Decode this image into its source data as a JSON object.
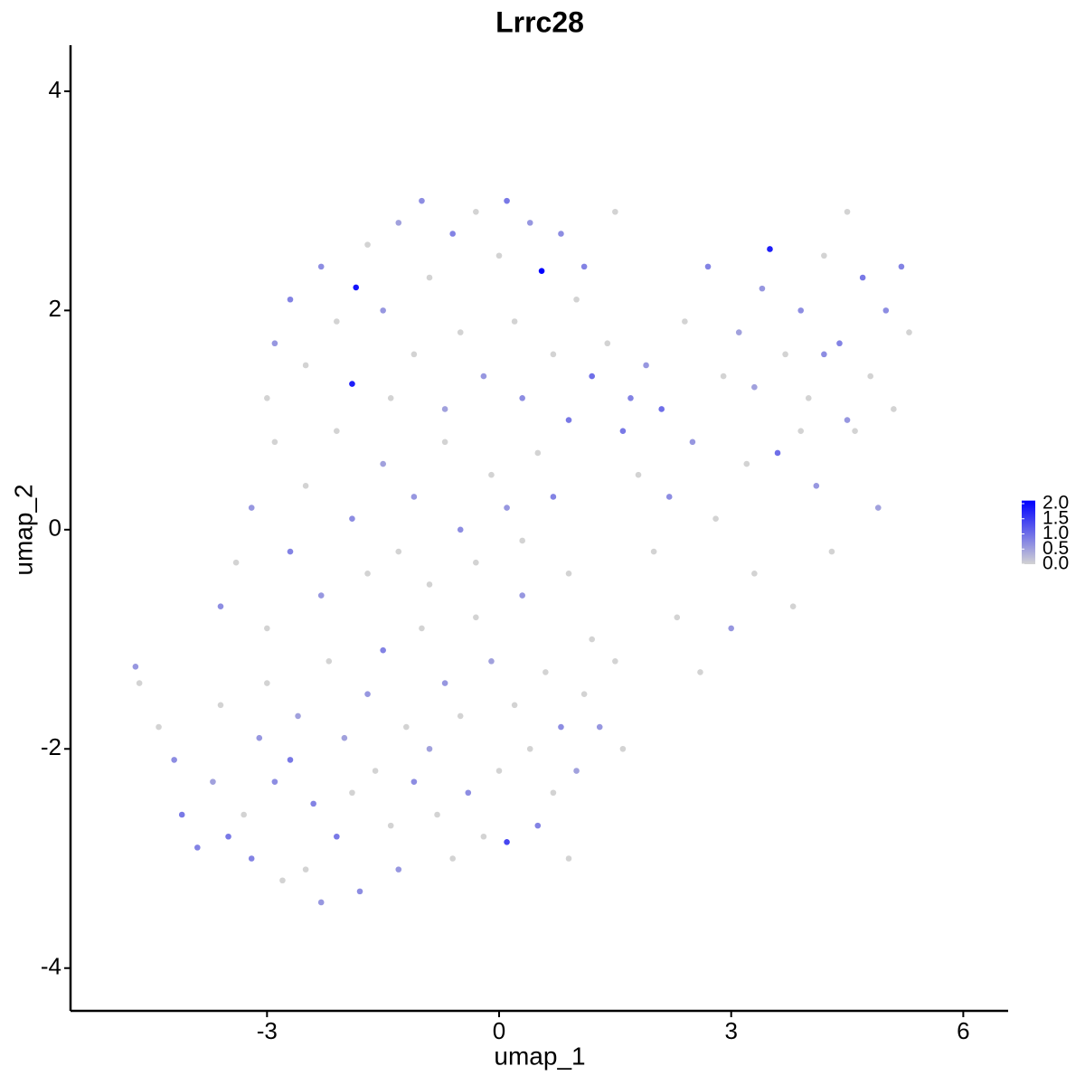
{
  "chart_data": {
    "type": "scatter",
    "title": "Lrrc28",
    "x_label": "umap_1",
    "y_label": "umap_2",
    "xlim": [
      -5.54,
      6.58
    ],
    "ylim": [
      -4.39,
      4.42
    ],
    "xticks": [
      -3,
      0,
      3,
      6
    ],
    "yticks": [
      -4,
      -2,
      0,
      2,
      4
    ],
    "colorscale": {
      "low": "#d3d3d3",
      "high": "#0000ff",
      "lim": [
        0,
        2.1
      ],
      "ticks": [
        {
          "value": 0,
          "label": "0.0"
        },
        0.5,
        {
          "value": 1,
          "label": "1.0"
        },
        1.5,
        {
          "value": 2,
          "label": "2.0"
        }
      ]
    },
    "x": [
      -4.7,
      -4.65,
      -4.4,
      -4.2,
      -4.1,
      -3.9,
      -3.7,
      -3.6,
      -3.5,
      -3.3,
      -3.2,
      -3.1,
      -3.0,
      -2.9,
      -2.8,
      -2.7,
      -2.6,
      -2.5,
      -2.4,
      -2.3,
      -2.2,
      -2.1,
      -2.0,
      -1.9,
      -1.8,
      -1.7,
      -1.6,
      -1.5,
      -1.4,
      -1.3,
      -1.2,
      -1.1,
      -1.0,
      -0.9,
      -0.8,
      -0.7,
      -0.6,
      -0.5,
      -0.4,
      -0.3,
      -0.2,
      -0.1,
      0.0,
      0.1,
      0.2,
      0.3,
      0.4,
      0.5,
      0.6,
      0.7,
      0.8,
      0.9,
      1.0,
      1.1,
      1.2,
      1.3,
      1.5,
      1.6,
      -3.6,
      -3.4,
      -3.2,
      -3.0,
      -2.9,
      -2.7,
      -2.5,
      -2.3,
      -2.1,
      -1.9,
      -1.7,
      -1.5,
      -1.3,
      -1.1,
      -0.9,
      -0.7,
      -0.5,
      -0.3,
      -0.1,
      0.1,
      0.3,
      0.5,
      0.7,
      0.9,
      -3.0,
      -2.9,
      -2.7,
      -2.5,
      -2.3,
      -2.1,
      -1.85,
      -1.9,
      -1.7,
      -1.5,
      -1.4,
      -1.3,
      -1.1,
      -1.0,
      -0.9,
      -0.7,
      -0.6,
      -0.5,
      -0.3,
      -0.2,
      0.0,
      0.1,
      0.2,
      0.3,
      0.4,
      0.55,
      0.7,
      0.8,
      0.9,
      1.0,
      1.1,
      1.2,
      1.4,
      1.5,
      1.6,
      1.7,
      1.8,
      1.9,
      2.0,
      2.1,
      2.2,
      2.3,
      2.4,
      2.5,
      2.6,
      2.7,
      2.8,
      2.9,
      3.0,
      3.1,
      3.2,
      3.3,
      3.4,
      3.5,
      3.6,
      3.7,
      3.8,
      3.9,
      4.0,
      4.1,
      4.2,
      4.3,
      4.4,
      4.5,
      4.6,
      4.7,
      4.8,
      4.9,
      5.0,
      5.1,
      5.2,
      5.3,
      4.5,
      3.9,
      4.2,
      3.3
    ],
    "y": [
      -1.25,
      -1.4,
      -1.8,
      -2.1,
      -2.6,
      -2.9,
      -2.3,
      -1.6,
      -2.8,
      -2.6,
      -3.0,
      -1.9,
      -1.4,
      -2.3,
      -3.2,
      -2.1,
      -1.7,
      -3.1,
      -2.5,
      -3.4,
      -1.2,
      -2.8,
      -1.9,
      -2.4,
      -3.3,
      -1.5,
      -2.2,
      -1.1,
      -2.7,
      -3.1,
      -1.8,
      -2.3,
      -0.9,
      -2.0,
      -2.6,
      -1.4,
      -3.0,
      -1.7,
      -2.4,
      -0.8,
      -2.8,
      -1.2,
      -2.2,
      -2.85,
      -1.6,
      -0.6,
      -2.0,
      -2.7,
      -1.3,
      -2.4,
      -1.8,
      -3.0,
      -2.2,
      -1.5,
      -1.0,
      -1.8,
      -1.2,
      -2.0,
      -0.7,
      -0.3,
      0.2,
      -0.9,
      0.8,
      -0.2,
      0.4,
      -0.6,
      0.9,
      0.1,
      -0.4,
      0.6,
      -0.2,
      0.3,
      -0.5,
      0.8,
      0.0,
      -0.3,
      0.5,
      0.2,
      -0.1,
      0.7,
      0.3,
      -0.4,
      1.2,
      1.7,
      2.1,
      1.5,
      2.4,
      1.9,
      2.21,
      1.33,
      2.6,
      2.0,
      1.2,
      2.8,
      1.6,
      3.0,
      2.3,
      1.1,
      2.7,
      1.8,
      2.9,
      1.4,
      2.5,
      3.0,
      1.9,
      1.2,
      2.8,
      2.36,
      1.6,
      2.7,
      1.0,
      2.1,
      2.4,
      1.4,
      1.7,
      2.9,
      0.9,
      1.2,
      0.5,
      1.5,
      -0.2,
      1.1,
      0.3,
      -0.8,
      1.9,
      0.8,
      -1.3,
      2.4,
      0.1,
      1.4,
      -0.9,
      1.8,
      0.6,
      -0.4,
      2.2,
      2.56,
      0.7,
      1.6,
      -0.7,
      2.0,
      1.2,
      0.4,
      2.5,
      -0.2,
      1.7,
      2.9,
      0.9,
      2.3,
      1.4,
      0.2,
      2.0,
      1.1,
      2.4,
      1.8,
      1.0,
      0.9,
      1.6,
      1.3
    ],
    "values": [
      0.6,
      0,
      0,
      0.7,
      0.9,
      0.8,
      0.5,
      0,
      0.9,
      0,
      0.8,
      0.6,
      0,
      0.7,
      0,
      0.9,
      0.5,
      0,
      0.8,
      0.6,
      0,
      0.9,
      0.5,
      0,
      0.7,
      0.6,
      0,
      0.8,
      0,
      0.6,
      0,
      0.7,
      0,
      0.5,
      0,
      0.6,
      0,
      0,
      0.7,
      0,
      0,
      0.5,
      0,
      1.4,
      0,
      0.6,
      0,
      0.8,
      0,
      0,
      0.7,
      0,
      0.5,
      0,
      0,
      0.6,
      0,
      0,
      0.7,
      0,
      0.6,
      0,
      0,
      0.8,
      0,
      0.6,
      0,
      0.7,
      0,
      0.5,
      0,
      0.6,
      0,
      0,
      0.7,
      0,
      0,
      0.6,
      0,
      0,
      0.8,
      0,
      0,
      0.6,
      0.8,
      0,
      0.7,
      0,
      1.9,
      1.8,
      0,
      0.6,
      0,
      0.5,
      0,
      0.7,
      0,
      0.5,
      0.8,
      0,
      0,
      0.6,
      0,
      0.9,
      0,
      0.7,
      0.6,
      2.1,
      0,
      0.7,
      0.9,
      0,
      0.8,
      1.0,
      0,
      0,
      0.9,
      0.8,
      0,
      0.6,
      0,
      1.0,
      0.7,
      0,
      0,
      0.6,
      0,
      0.8,
      0,
      0,
      0.6,
      0.5,
      0,
      0,
      0.6,
      1.8,
      1.0,
      0,
      0,
      0.7,
      0,
      0.6,
      0,
      0,
      0.8,
      0,
      0,
      0.9,
      0,
      0.5,
      0.7,
      0,
      0.8,
      0,
      0.6,
      0,
      0.7,
      0.5
    ]
  }
}
